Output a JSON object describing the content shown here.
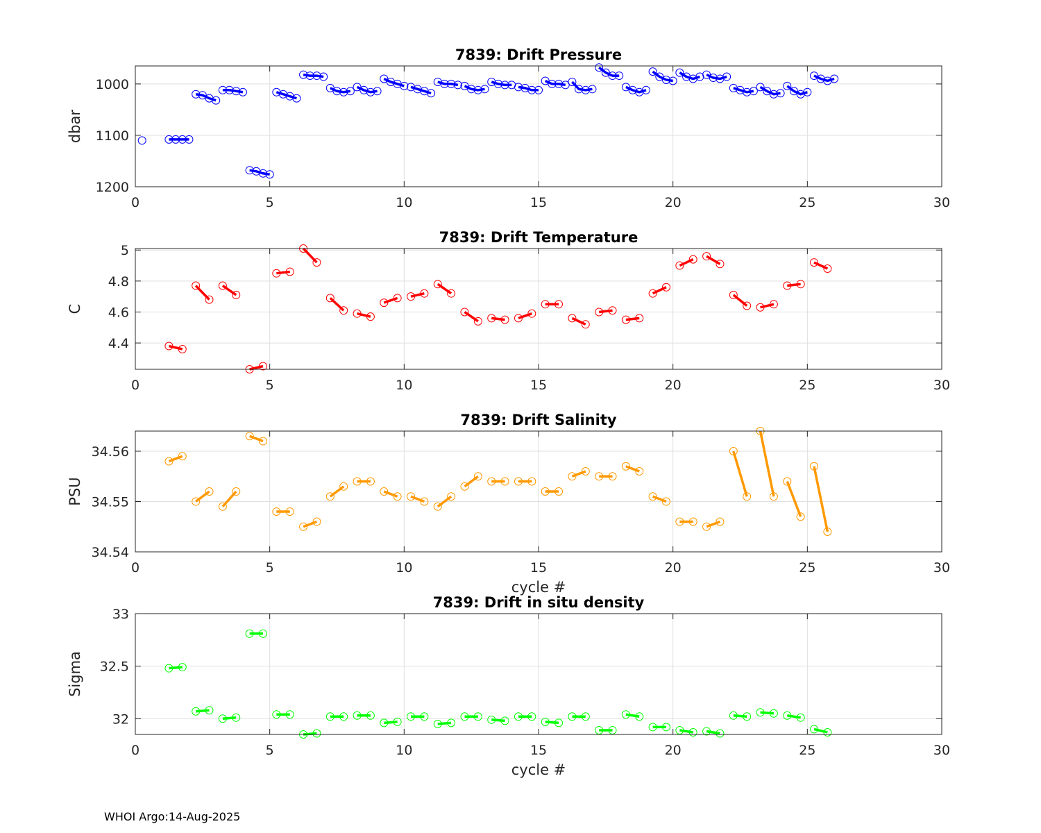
{
  "footer": "WHOI Argo:14-Aug-2025",
  "chart_data": [
    {
      "type": "scatter",
      "title": "7839: Drift Pressure",
      "xlabel": "",
      "ylabel": "dbar",
      "xlim": [
        0,
        30
      ],
      "ylim": [
        965,
        1200
      ],
      "y_reversed": true,
      "xticks": [
        0,
        5,
        10,
        15,
        20,
        25,
        30
      ],
      "yticks": [
        1000,
        1100,
        1200
      ],
      "grid": true,
      "color": "#0000ff",
      "series": [
        {
          "x": [
            0.25
          ],
          "y": [
            1110
          ]
        },
        {
          "x": [
            1.25,
            1.5,
            1.75,
            2.0
          ],
          "y": [
            1108,
            1108,
            1108,
            1108
          ]
        },
        {
          "x": [
            2.25,
            2.5,
            2.75,
            3.0
          ],
          "y": [
            1020,
            1022,
            1028,
            1032
          ]
        },
        {
          "x": [
            3.25,
            3.5,
            3.75,
            4.0
          ],
          "y": [
            1012,
            1012,
            1014,
            1016
          ]
        },
        {
          "x": [
            4.25,
            4.5,
            4.75,
            5.0
          ],
          "y": [
            1168,
            1170,
            1174,
            1176
          ]
        },
        {
          "x": [
            5.25,
            5.5,
            5.75,
            6.0
          ],
          "y": [
            1016,
            1020,
            1024,
            1028
          ]
        },
        {
          "x": [
            6.25,
            6.5,
            6.75,
            7.0
          ],
          "y": [
            982,
            984,
            984,
            986
          ]
        },
        {
          "x": [
            7.25,
            7.5,
            7.75,
            8.0
          ],
          "y": [
            1008,
            1014,
            1016,
            1014
          ]
        },
        {
          "x": [
            8.25,
            8.5,
            8.75,
            9.0
          ],
          "y": [
            1006,
            1012,
            1016,
            1014
          ]
        },
        {
          "x": [
            9.25,
            9.5,
            9.75,
            10.0
          ],
          "y": [
            990,
            996,
            1000,
            1004
          ]
        },
        {
          "x": [
            10.25,
            10.5,
            10.75,
            11.0
          ],
          "y": [
            1006,
            1010,
            1014,
            1018
          ]
        },
        {
          "x": [
            11.25,
            11.5,
            11.75,
            12.0
          ],
          "y": [
            996,
            1000,
            1000,
            1002
          ]
        },
        {
          "x": [
            12.25,
            12.5,
            12.75,
            13.0
          ],
          "y": [
            1004,
            1010,
            1012,
            1010
          ]
        },
        {
          "x": [
            13.25,
            13.5,
            13.75,
            14.0
          ],
          "y": [
            996,
            1000,
            1002,
            1002
          ]
        },
        {
          "x": [
            14.25,
            14.5,
            14.75,
            15.0
          ],
          "y": [
            1006,
            1008,
            1012,
            1012
          ]
        },
        {
          "x": [
            15.25,
            15.5,
            15.75,
            16.0
          ],
          "y": [
            994,
            1000,
            1000,
            1002
          ]
        },
        {
          "x": [
            16.25,
            16.5,
            16.75,
            17.0
          ],
          "y": [
            996,
            1010,
            1012,
            1010
          ]
        },
        {
          "x": [
            17.25,
            17.5,
            17.75,
            18.0
          ],
          "y": [
            968,
            978,
            984,
            984
          ]
        },
        {
          "x": [
            18.25,
            18.5,
            18.75,
            19.0
          ],
          "y": [
            1006,
            1012,
            1016,
            1012
          ]
        },
        {
          "x": [
            19.25,
            19.5,
            19.75,
            20.0
          ],
          "y": [
            976,
            986,
            992,
            994
          ]
        },
        {
          "x": [
            20.25,
            20.5,
            20.75,
            21.0
          ],
          "y": [
            978,
            986,
            990,
            986
          ]
        },
        {
          "x": [
            21.25,
            21.5,
            21.75,
            22.0
          ],
          "y": [
            982,
            988,
            990,
            986
          ]
        },
        {
          "x": [
            22.25,
            22.5,
            22.75,
            23.0
          ],
          "y": [
            1008,
            1012,
            1016,
            1014
          ]
        },
        {
          "x": [
            23.25,
            23.5,
            23.75,
            24.0
          ],
          "y": [
            1006,
            1014,
            1020,
            1018
          ]
        },
        {
          "x": [
            24.25,
            24.5,
            24.75,
            25.0
          ],
          "y": [
            1004,
            1014,
            1020,
            1016
          ]
        },
        {
          "x": [
            25.25,
            25.5,
            25.75,
            26.0
          ],
          "y": [
            984,
            990,
            994,
            990
          ]
        }
      ]
    },
    {
      "type": "scatter",
      "title": "7839: Drift Temperature",
      "xlabel": "",
      "ylabel": "C",
      "xlim": [
        0,
        30
      ],
      "ylim": [
        4.23,
        5.01
      ],
      "xticks": [
        0,
        5,
        10,
        15,
        20,
        25,
        30
      ],
      "yticks": [
        4.4,
        4.6,
        4.8,
        5
      ],
      "ytick_labels": [
        "4.4",
        "4.6",
        "4.8",
        "5"
      ],
      "grid": true,
      "color": "#ff0000",
      "series": [
        {
          "x": [
            1.25,
            1.75
          ],
          "y": [
            4.38,
            4.36
          ]
        },
        {
          "x": [
            2.25,
            2.75
          ],
          "y": [
            4.77,
            4.68
          ]
        },
        {
          "x": [
            3.25,
            3.75
          ],
          "y": [
            4.77,
            4.71
          ]
        },
        {
          "x": [
            4.25,
            4.75
          ],
          "y": [
            4.23,
            4.25
          ]
        },
        {
          "x": [
            5.25,
            5.75
          ],
          "y": [
            4.85,
            4.86
          ]
        },
        {
          "x": [
            6.25,
            6.75
          ],
          "y": [
            5.01,
            4.92
          ]
        },
        {
          "x": [
            7.25,
            7.75
          ],
          "y": [
            4.69,
            4.61
          ]
        },
        {
          "x": [
            8.25,
            8.75
          ],
          "y": [
            4.59,
            4.57
          ]
        },
        {
          "x": [
            9.25,
            9.75
          ],
          "y": [
            4.66,
            4.69
          ]
        },
        {
          "x": [
            10.25,
            10.75
          ],
          "y": [
            4.7,
            4.72
          ]
        },
        {
          "x": [
            11.25,
            11.75
          ],
          "y": [
            4.78,
            4.72
          ]
        },
        {
          "x": [
            12.25,
            12.75
          ],
          "y": [
            4.6,
            4.54
          ]
        },
        {
          "x": [
            13.25,
            13.75
          ],
          "y": [
            4.56,
            4.55
          ]
        },
        {
          "x": [
            14.25,
            14.75
          ],
          "y": [
            4.56,
            4.59
          ]
        },
        {
          "x": [
            15.25,
            15.75
          ],
          "y": [
            4.65,
            4.65
          ]
        },
        {
          "x": [
            16.25,
            16.75
          ],
          "y": [
            4.56,
            4.52
          ]
        },
        {
          "x": [
            17.25,
            17.75
          ],
          "y": [
            4.6,
            4.61
          ]
        },
        {
          "x": [
            18.25,
            18.75
          ],
          "y": [
            4.55,
            4.56
          ]
        },
        {
          "x": [
            19.25,
            19.75
          ],
          "y": [
            4.72,
            4.76
          ]
        },
        {
          "x": [
            20.25,
            20.75
          ],
          "y": [
            4.9,
            4.94
          ]
        },
        {
          "x": [
            21.25,
            21.75
          ],
          "y": [
            4.96,
            4.91
          ]
        },
        {
          "x": [
            22.25,
            22.75
          ],
          "y": [
            4.71,
            4.64
          ]
        },
        {
          "x": [
            23.25,
            23.75
          ],
          "y": [
            4.63,
            4.65
          ]
        },
        {
          "x": [
            24.25,
            24.75
          ],
          "y": [
            4.77,
            4.78
          ]
        },
        {
          "x": [
            25.25,
            25.75
          ],
          "y": [
            4.92,
            4.88
          ]
        }
      ]
    },
    {
      "type": "scatter",
      "title": "7839: Drift Salinity",
      "xlabel": "cycle #",
      "ylabel": "PSU",
      "xlim": [
        0,
        30
      ],
      "ylim": [
        34.54,
        34.564
      ],
      "xticks": [
        0,
        5,
        10,
        15,
        20,
        25,
        30
      ],
      "yticks": [
        34.54,
        34.55,
        34.56
      ],
      "ytick_labels": [
        "34.54",
        "34.55",
        "34.56"
      ],
      "grid": true,
      "color": "#ff9900",
      "series": [
        {
          "x": [
            1.25,
            1.75
          ],
          "y": [
            34.558,
            34.559
          ]
        },
        {
          "x": [
            2.25,
            2.75
          ],
          "y": [
            34.55,
            34.552
          ]
        },
        {
          "x": [
            3.25,
            3.75
          ],
          "y": [
            34.549,
            34.552
          ]
        },
        {
          "x": [
            4.25,
            4.75
          ],
          "y": [
            34.563,
            34.562
          ]
        },
        {
          "x": [
            5.25,
            5.75
          ],
          "y": [
            34.548,
            34.548
          ]
        },
        {
          "x": [
            6.25,
            6.75
          ],
          "y": [
            34.545,
            34.546
          ]
        },
        {
          "x": [
            7.25,
            7.75
          ],
          "y": [
            34.551,
            34.553
          ]
        },
        {
          "x": [
            8.25,
            8.75
          ],
          "y": [
            34.554,
            34.554
          ]
        },
        {
          "x": [
            9.25,
            9.75
          ],
          "y": [
            34.552,
            34.551
          ]
        },
        {
          "x": [
            10.25,
            10.75
          ],
          "y": [
            34.551,
            34.55
          ]
        },
        {
          "x": [
            11.25,
            11.75
          ],
          "y": [
            34.549,
            34.551
          ]
        },
        {
          "x": [
            12.25,
            12.75
          ],
          "y": [
            34.553,
            34.555
          ]
        },
        {
          "x": [
            13.25,
            13.75
          ],
          "y": [
            34.554,
            34.554
          ]
        },
        {
          "x": [
            14.25,
            14.75
          ],
          "y": [
            34.554,
            34.554
          ]
        },
        {
          "x": [
            15.25,
            15.75
          ],
          "y": [
            34.552,
            34.552
          ]
        },
        {
          "x": [
            16.25,
            16.75
          ],
          "y": [
            34.555,
            34.556
          ]
        },
        {
          "x": [
            17.25,
            17.75
          ],
          "y": [
            34.555,
            34.555
          ]
        },
        {
          "x": [
            18.25,
            18.75
          ],
          "y": [
            34.557,
            34.556
          ]
        },
        {
          "x": [
            19.25,
            19.75
          ],
          "y": [
            34.551,
            34.55
          ]
        },
        {
          "x": [
            20.25,
            20.75
          ],
          "y": [
            34.546,
            34.546
          ]
        },
        {
          "x": [
            21.25,
            21.75
          ],
          "y": [
            34.545,
            34.546
          ]
        },
        {
          "x": [
            22.25,
            22.75
          ],
          "y": [
            34.56,
            34.551
          ]
        },
        {
          "x": [
            23.25,
            23.75
          ],
          "y": [
            34.564,
            34.551
          ]
        },
        {
          "x": [
            24.25,
            24.75
          ],
          "y": [
            34.554,
            34.547
          ]
        },
        {
          "x": [
            25.25,
            25.75
          ],
          "y": [
            34.557,
            34.544
          ]
        }
      ]
    },
    {
      "type": "scatter",
      "title": "7839: Drift in situ density",
      "xlabel": "cycle #",
      "ylabel": "Sigma",
      "xlim": [
        0,
        30
      ],
      "ylim": [
        31.85,
        33
      ],
      "xticks": [
        0,
        5,
        10,
        15,
        20,
        25,
        30
      ],
      "yticks": [
        32,
        32.5,
        33
      ],
      "ytick_labels": [
        "32",
        "32.5",
        "33"
      ],
      "grid": true,
      "color": "#00ff00",
      "series": [
        {
          "x": [
            1.25,
            1.75
          ],
          "y": [
            32.48,
            32.49
          ]
        },
        {
          "x": [
            2.25,
            2.75
          ],
          "y": [
            32.07,
            32.08
          ]
        },
        {
          "x": [
            3.25,
            3.75
          ],
          "y": [
            32.0,
            32.01
          ]
        },
        {
          "x": [
            4.25,
            4.75
          ],
          "y": [
            32.81,
            32.81
          ]
        },
        {
          "x": [
            5.25,
            5.75
          ],
          "y": [
            32.04,
            32.04
          ]
        },
        {
          "x": [
            6.25,
            6.75
          ],
          "y": [
            31.85,
            31.86
          ]
        },
        {
          "x": [
            7.25,
            7.75
          ],
          "y": [
            32.02,
            32.02
          ]
        },
        {
          "x": [
            8.25,
            8.75
          ],
          "y": [
            32.03,
            32.03
          ]
        },
        {
          "x": [
            9.25,
            9.75
          ],
          "y": [
            31.96,
            31.97
          ]
        },
        {
          "x": [
            10.25,
            10.75
          ],
          "y": [
            32.02,
            32.02
          ]
        },
        {
          "x": [
            11.25,
            11.75
          ],
          "y": [
            31.95,
            31.96
          ]
        },
        {
          "x": [
            12.25,
            12.75
          ],
          "y": [
            32.02,
            32.02
          ]
        },
        {
          "x": [
            13.25,
            13.75
          ],
          "y": [
            31.99,
            31.98
          ]
        },
        {
          "x": [
            14.25,
            14.75
          ],
          "y": [
            32.02,
            32.02
          ]
        },
        {
          "x": [
            15.25,
            15.75
          ],
          "y": [
            31.97,
            31.96
          ]
        },
        {
          "x": [
            16.25,
            16.75
          ],
          "y": [
            32.02,
            32.02
          ]
        },
        {
          "x": [
            17.25,
            17.75
          ],
          "y": [
            31.89,
            31.89
          ]
        },
        {
          "x": [
            18.25,
            18.75
          ],
          "y": [
            32.04,
            32.02
          ]
        },
        {
          "x": [
            19.25,
            19.75
          ],
          "y": [
            31.92,
            31.92
          ]
        },
        {
          "x": [
            20.25,
            20.75
          ],
          "y": [
            31.89,
            31.87
          ]
        },
        {
          "x": [
            21.25,
            21.75
          ],
          "y": [
            31.88,
            31.86
          ]
        },
        {
          "x": [
            22.25,
            22.75
          ],
          "y": [
            32.03,
            32.02
          ]
        },
        {
          "x": [
            23.25,
            23.75
          ],
          "y": [
            32.06,
            32.05
          ]
        },
        {
          "x": [
            24.25,
            24.75
          ],
          "y": [
            32.03,
            32.01
          ]
        },
        {
          "x": [
            25.25,
            25.75
          ],
          "y": [
            31.9,
            31.87
          ]
        }
      ]
    }
  ]
}
